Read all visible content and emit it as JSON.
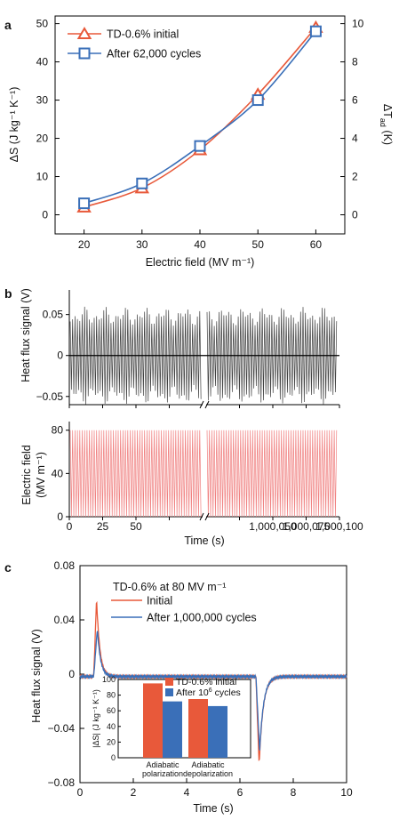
{
  "chart_data": [
    {
      "panel": "a",
      "type": "line",
      "categories": [
        20,
        30,
        40,
        50,
        60
      ],
      "xlabel": "Electric field (MV m⁻¹)",
      "ylabel": "ΔS (J kg⁻¹ K⁻¹)",
      "y2label": "ΔT",
      "y2label_sub": "ad",
      "y2label_unit": "(K)",
      "xlim": [
        15,
        65
      ],
      "ylim": [
        -5,
        52
      ],
      "y2lim": [
        -1,
        10.4
      ],
      "xticks": [
        20,
        30,
        40,
        50,
        60
      ],
      "yticks": [
        0,
        10,
        20,
        30,
        40,
        50
      ],
      "y2ticks": [
        0,
        2,
        4,
        6,
        8,
        10
      ],
      "series": [
        {
          "name": "TD-0.6% initial",
          "color": "#e8593a",
          "marker": "triangle",
          "values": [
            2,
            7,
            17,
            31.5,
            49
          ]
        },
        {
          "name": "After 62,000 cycles",
          "color": "#3a6fb8",
          "marker": "square",
          "values": [
            3,
            8.2,
            18,
            30,
            48
          ]
        }
      ],
      "legend": "top-left"
    },
    {
      "panel": "b",
      "type": "line",
      "top": {
        "ylabel": "Heat flux signal (V)",
        "ylim": [
          -0.06,
          0.08
        ],
        "yticks": [
          -0.05,
          0,
          0.05
        ],
        "yticklabels": [
          "−0.05",
          "0",
          "0.05"
        ],
        "color": "#404040",
        "amplitude": 0.06,
        "baseline": 0
      },
      "bottom": {
        "ylabel": "Electric field",
        "ylabel_unit": "(MV m⁻¹)",
        "ylim": [
          0,
          88
        ],
        "yticks": [
          0,
          40,
          80
        ],
        "color": "#f08080",
        "min": 0,
        "max": 80
      },
      "xlabel": "Time (s)",
      "segment1": {
        "xlim": [
          0,
          100
        ],
        "xticks": [
          0,
          25,
          50,
          75
        ],
        "xticklabels": [
          "0",
          "25",
          "50",
          ""
        ]
      },
      "segment2": {
        "xlim": [
          1000000,
          1000100
        ],
        "xticks": [
          1000025,
          1000050,
          1000075,
          1000100
        ],
        "xticklabels": [
          "",
          "1,000,050",
          "1,000,075",
          "1,000,100"
        ]
      },
      "axis_break": true
    },
    {
      "panel": "c",
      "type": "line",
      "title": "TD-0.6% at 80 MV m⁻¹",
      "xlabel": "Time (s)",
      "ylabel": "Heat flux signal (V)",
      "xlim": [
        0,
        10
      ],
      "ylim": [
        -0.08,
        0.08
      ],
      "xticks": [
        0,
        2,
        4,
        6,
        8,
        10
      ],
      "yticks": [
        -0.08,
        -0.04,
        0,
        0.04,
        0.08
      ],
      "yticklabels": [
        "−0.08",
        "−0.04",
        "0",
        "0.04",
        "0.08"
      ],
      "series": [
        {
          "name": "Initial",
          "color": "#e8593a",
          "peak_time": 0.62,
          "peak": 0.06,
          "trough_time": 6.72,
          "trough": -0.065
        },
        {
          "name": "After 1,000,000 cycles",
          "color": "#3a6fb8",
          "peak_time": 0.65,
          "peak": 0.036,
          "trough_time": 6.74,
          "trough": -0.055
        }
      ],
      "legend": "top-right",
      "inset": {
        "type": "bar",
        "ylabel": "|ΔS| (J kg⁻¹ K⁻¹)",
        "ylim": [
          0,
          100
        ],
        "yticks": [
          0,
          20,
          40,
          60,
          80,
          100
        ],
        "categories": [
          "Adiabatic polarization",
          "Adiabatic depolarization"
        ],
        "categories_lines": [
          [
            "Adiabatic",
            "polarization"
          ],
          [
            "Adiabatic",
            "depolarization"
          ]
        ],
        "series": [
          {
            "name": "TD-0.6% initial",
            "color": "#e8593a",
            "values": [
              95,
              75
            ]
          },
          {
            "name": "After 10⁶ cycles",
            "name_text": "After 10",
            "name_sup": "6",
            "name_tail": " cycles",
            "color": "#3a6fb8",
            "values": [
              72,
              66
            ]
          }
        ]
      }
    }
  ]
}
